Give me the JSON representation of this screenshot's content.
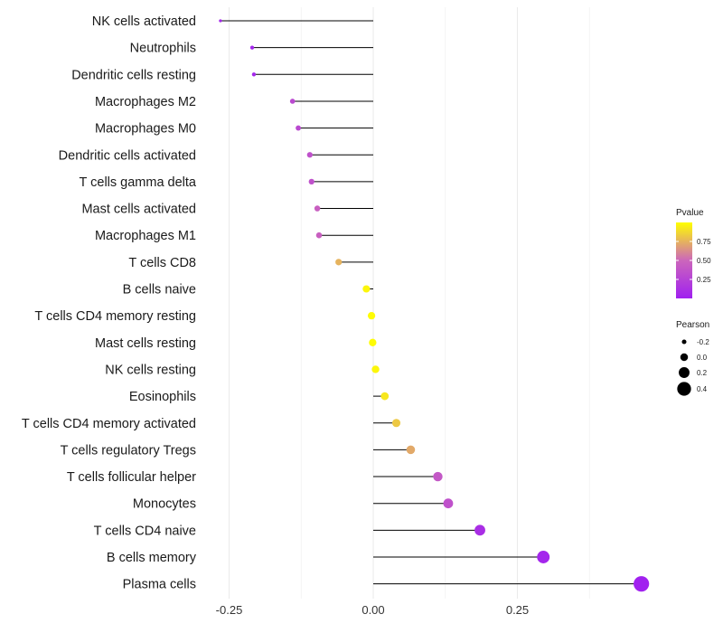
{
  "chart_data": {
    "type": "lollipop",
    "title": "",
    "xlabel": "",
    "ylabel": "",
    "xlim": [
      -0.3,
      0.47
    ],
    "x_ticks": [
      -0.25,
      0.0,
      0.25
    ],
    "x_tick_labels": [
      "-0.25",
      "0.00",
      "0.25"
    ],
    "grid": true,
    "categories": [
      "NK cells activated",
      "Neutrophils",
      "Dendritic cells resting",
      "Macrophages M2",
      "Macrophages M0",
      "Dendritic cells activated",
      "T cells gamma delta",
      "Mast cells activated",
      "Macrophages M1",
      "T cells CD8",
      "B cells naive",
      "T cells CD4 memory resting",
      "Mast cells resting",
      "NK cells resting",
      "Eosinophils",
      "T cells CD4 memory activated",
      "T cells regulatory  Tregs",
      "T cells follicular helper",
      "Monocytes",
      "T cells CD4 naive",
      "B cells memory",
      "Plasma cells"
    ],
    "values": [
      -0.265,
      -0.21,
      -0.207,
      -0.14,
      -0.13,
      -0.11,
      -0.107,
      -0.097,
      -0.094,
      -0.06,
      -0.012,
      -0.003,
      -0.001,
      0.004,
      0.02,
      0.04,
      0.065,
      0.112,
      0.13,
      0.185,
      0.295,
      0.465
    ],
    "pvalues": [
      0.05,
      0.05,
      0.05,
      0.3,
      0.3,
      0.35,
      0.35,
      0.45,
      0.45,
      0.75,
      0.97,
      0.99,
      0.99,
      0.97,
      0.92,
      0.82,
      0.72,
      0.4,
      0.35,
      0.1,
      0.04,
      0.01
    ],
    "legend_color": {
      "title": "Pvalue",
      "range": [
        0.0,
        1.0
      ],
      "ticks": [
        0.25,
        0.5,
        0.75
      ],
      "tick_labels": [
        "0.25",
        "0.50",
        "0.75"
      ],
      "low_color": "#a020f0",
      "mid_color": "#cc66bb",
      "high_color": "#ffff00",
      "position": "right"
    },
    "legend_size": {
      "title": "Pearson",
      "values": [
        -0.2,
        0.0,
        0.2,
        0.4
      ],
      "labels": [
        "-0.2",
        "0.0",
        "0.2",
        "0.4"
      ],
      "position": "right"
    }
  }
}
